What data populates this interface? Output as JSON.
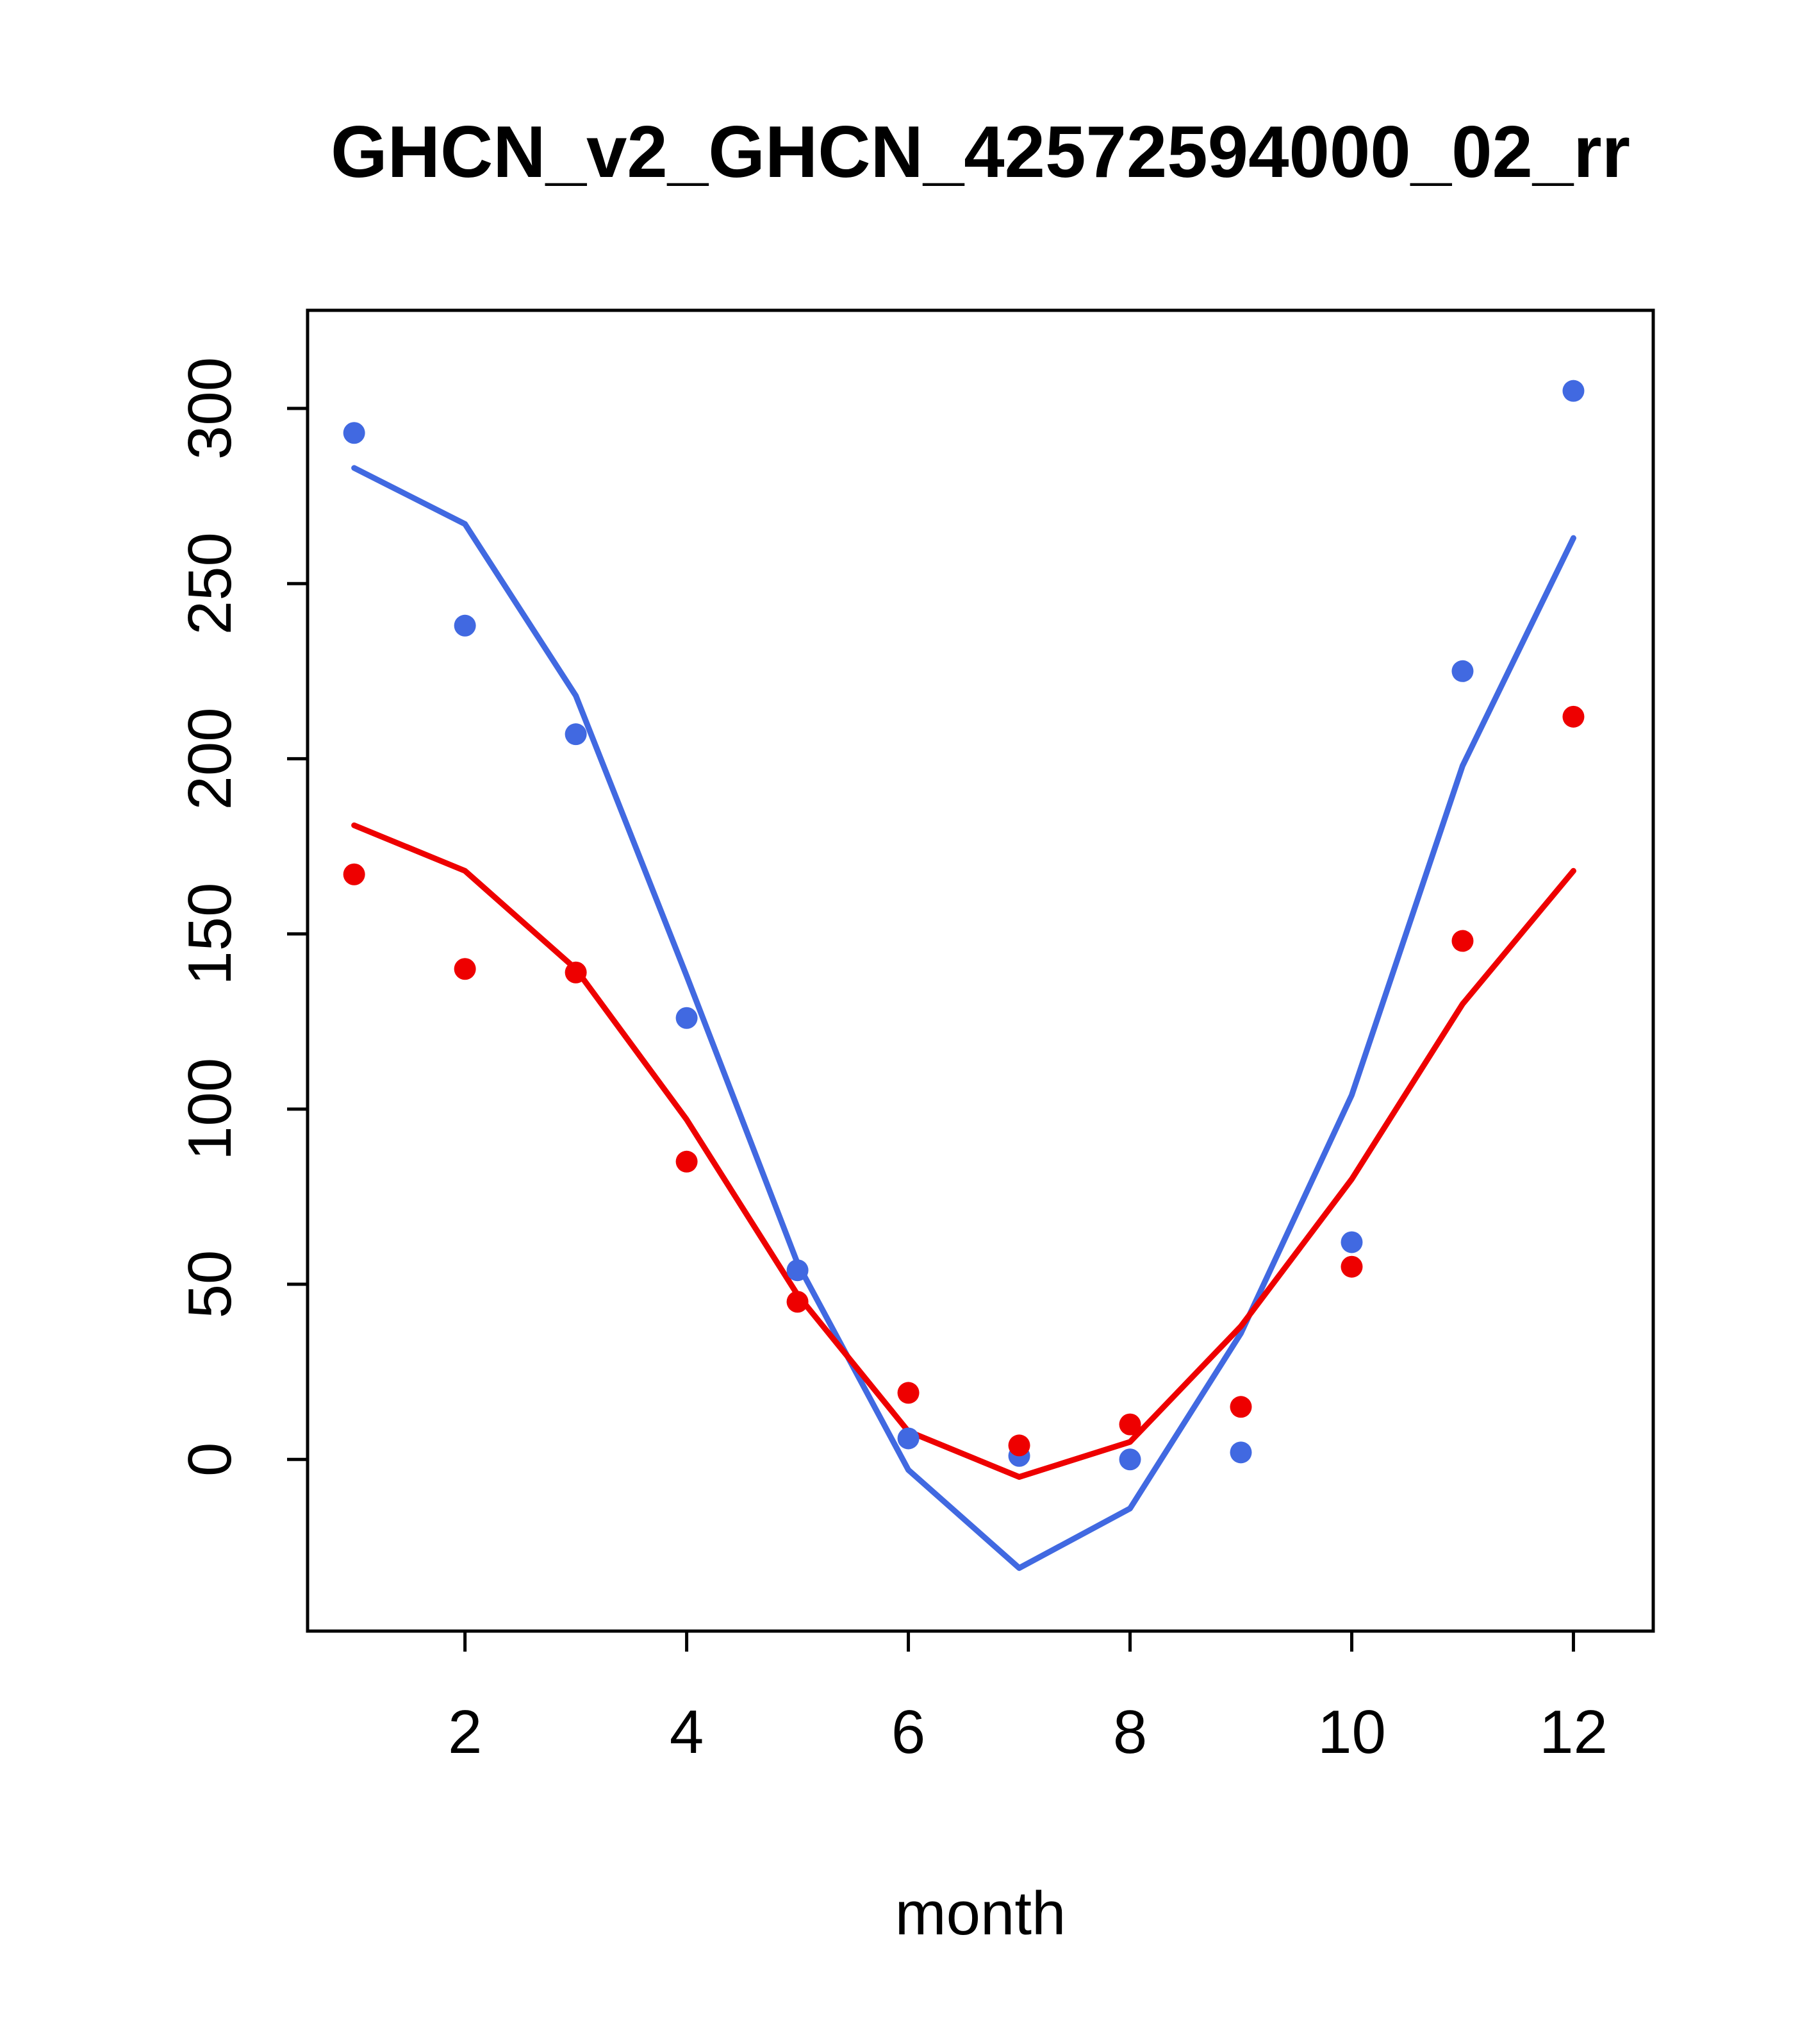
{
  "chart_data": {
    "type": "scatter",
    "title": "GHCN_v2_GHCN_42572594000_02_rr",
    "xlabel": "month",
    "ylabel": "",
    "x": [
      1,
      2,
      3,
      4,
      5,
      6,
      7,
      8,
      9,
      10,
      11,
      12
    ],
    "xticks": [
      2,
      4,
      6,
      8,
      10,
      12
    ],
    "yticks": [
      0,
      50,
      100,
      150,
      200,
      250,
      300
    ],
    "xlim": [
      0.58,
      12.72
    ],
    "ylim": [
      -49,
      328
    ],
    "grid": false,
    "legend": "none",
    "axis_color": "#000000",
    "background": "#ffffff",
    "series": [
      {
        "name": "blue-fitted-line",
        "type": "line",
        "color": "#4169e1",
        "values": [
          283,
          267,
          218,
          138,
          56,
          -3,
          -31,
          -14,
          36,
          104,
          198,
          263
        ]
      },
      {
        "name": "red-fitted-line",
        "type": "line",
        "color": "#ee0000",
        "values": [
          181,
          168,
          140,
          97,
          47,
          8,
          -5,
          5,
          38,
          80,
          130,
          168
        ]
      },
      {
        "name": "blue-observations",
        "type": "points",
        "color": "#4169e1",
        "values": [
          293,
          238,
          207,
          126,
          54,
          6,
          1,
          0,
          2,
          62,
          225,
          305
        ]
      },
      {
        "name": "red-observations",
        "type": "points",
        "color": "#ee0000",
        "values": [
          167,
          140,
          139,
          85,
          45,
          19,
          4,
          10,
          15,
          55,
          148,
          212
        ]
      }
    ]
  }
}
